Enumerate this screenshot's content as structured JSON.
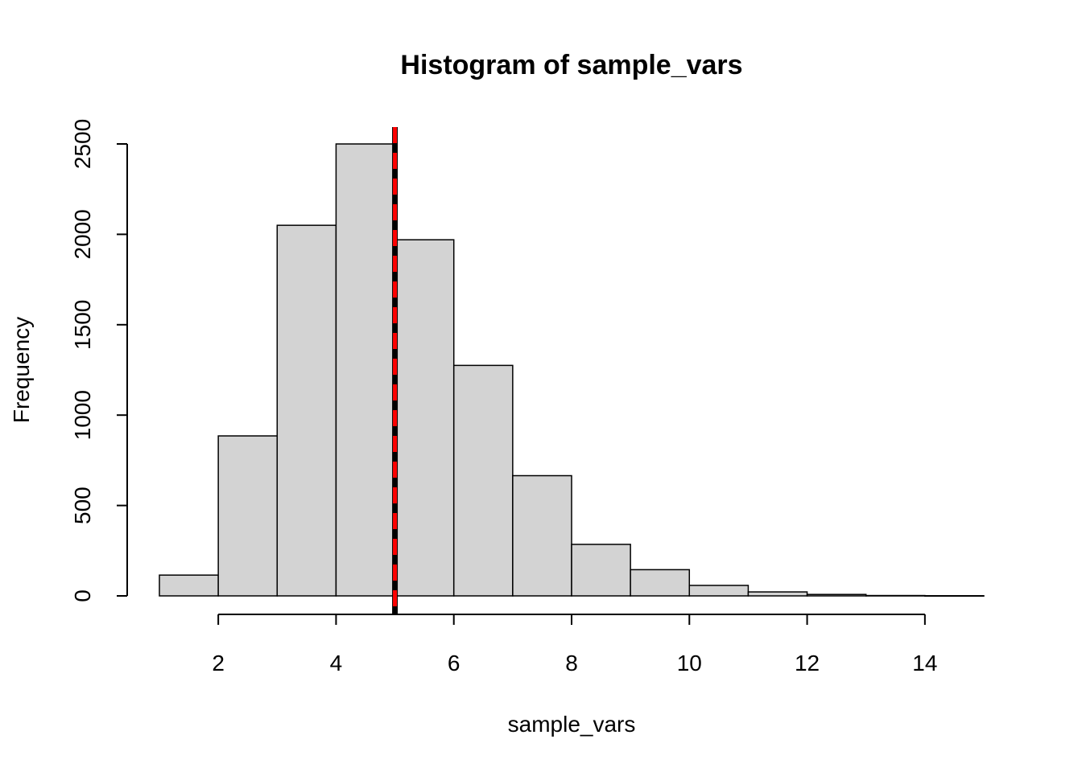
{
  "chart_data": {
    "type": "bar",
    "title": "Histogram of sample_vars",
    "xlabel": "sample_vars",
    "ylabel": "Frequency",
    "bins": [
      {
        "from": 1,
        "to": 2,
        "count": 115
      },
      {
        "from": 2,
        "to": 3,
        "count": 885
      },
      {
        "from": 3,
        "to": 4,
        "count": 2050
      },
      {
        "from": 4,
        "to": 5,
        "count": 2500
      },
      {
        "from": 5,
        "to": 6,
        "count": 1970
      },
      {
        "from": 6,
        "to": 7,
        "count": 1275
      },
      {
        "from": 7,
        "to": 8,
        "count": 665
      },
      {
        "from": 8,
        "to": 9,
        "count": 285
      },
      {
        "from": 9,
        "to": 10,
        "count": 145
      },
      {
        "from": 10,
        "to": 11,
        "count": 58
      },
      {
        "from": 11,
        "to": 12,
        "count": 22
      },
      {
        "from": 12,
        "to": 13,
        "count": 8
      },
      {
        "from": 13,
        "to": 14,
        "count": 2
      },
      {
        "from": 14,
        "to": 15,
        "count": 1
      }
    ],
    "x_ticks": [
      2,
      4,
      6,
      8,
      10,
      12,
      14
    ],
    "y_ticks": [
      0,
      500,
      1000,
      1500,
      2000,
      2500
    ],
    "xlim": [
      1,
      15
    ],
    "ylim": [
      0,
      2500
    ],
    "vlines": [
      {
        "x": 5,
        "color": "#000000",
        "style": "solid"
      },
      {
        "x": 5,
        "color": "#ff0000",
        "style": "dashed"
      }
    ],
    "bar_color": "#d3d3d3",
    "grid": false
  }
}
